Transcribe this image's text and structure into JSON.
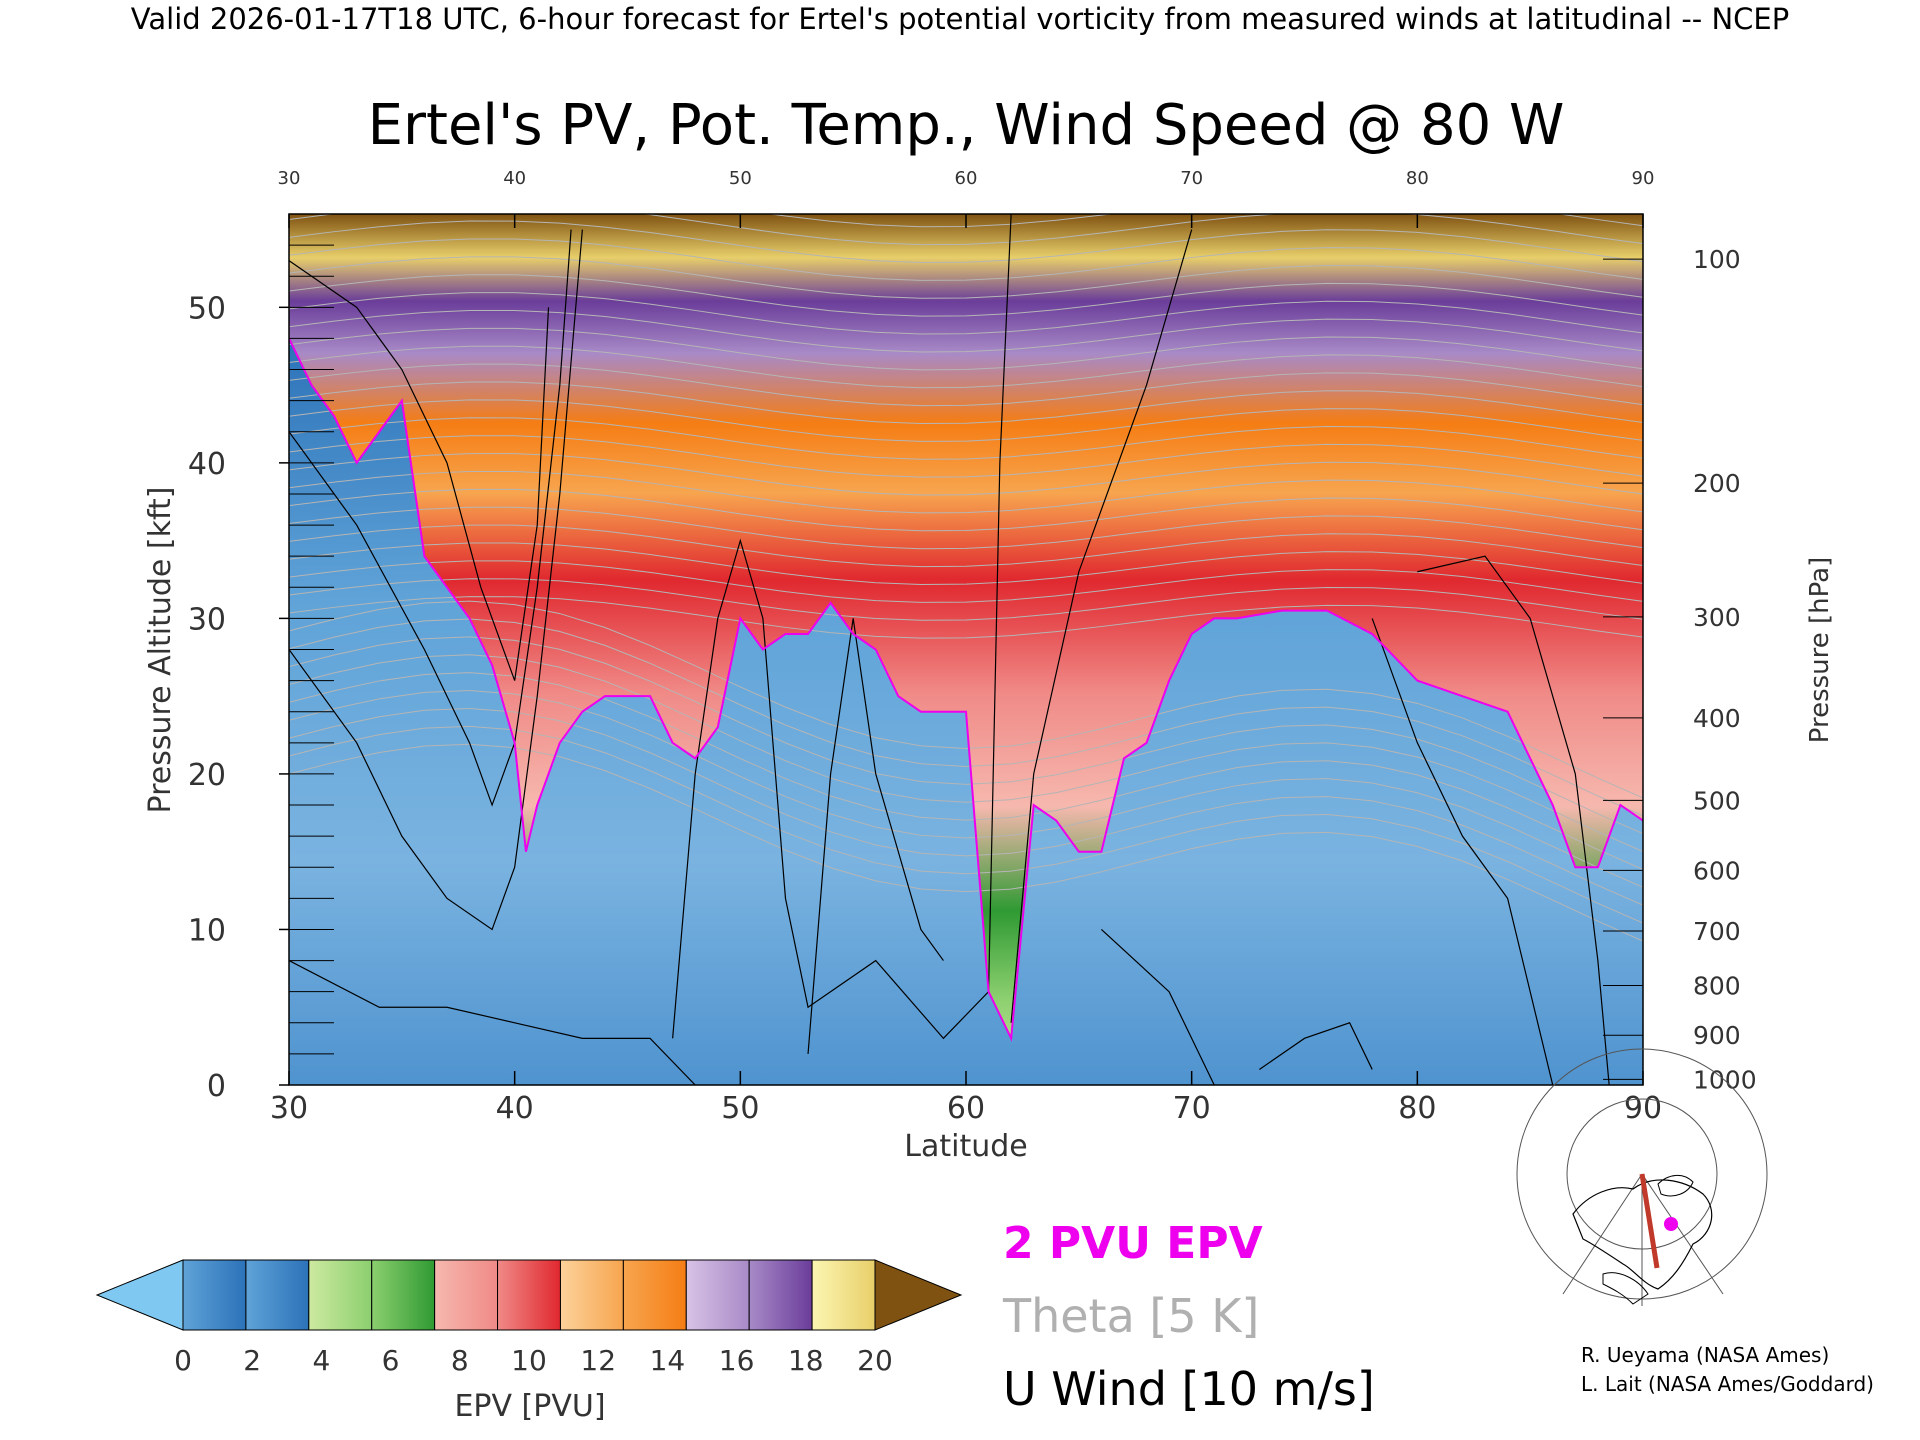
{
  "header": "Valid 2026-01-17T18 UTC, 6-hour forecast for Ertel's potential vorticity from measured winds at latitudinal -- NCEP",
  "chart_data": {
    "type": "heatmap",
    "title": "Ertel's PV, Pot. Temp., Wind Speed @ 80 W",
    "xlabel": "Latitude",
    "ylabel": "Pressure Altitude [kft]",
    "ylabel_right": "Pressure [hPa]",
    "xlim": [
      30,
      90
    ],
    "ylim": [
      0,
      56
    ],
    "x_ticks": [
      30,
      40,
      50,
      60,
      70,
      80,
      90
    ],
    "x_tick_labels": [
      "30",
      "40",
      "50",
      "60",
      "70",
      "80",
      "90"
    ],
    "y_ticks": [
      0,
      10,
      20,
      30,
      40,
      50
    ],
    "y_tick_labels": [
      "0",
      "10",
      "20",
      "30",
      "40",
      "50"
    ],
    "pressure_ticks": [
      {
        "label": "100",
        "kft": 53.1
      },
      {
        "label": "200",
        "kft": 38.7
      },
      {
        "label": "300",
        "kft": 30.1
      },
      {
        "label": "400",
        "kft": 23.6
      },
      {
        "label": "500",
        "kft": 18.3
      },
      {
        "label": "600",
        "kft": 13.8
      },
      {
        "label": "700",
        "kft": 9.9
      },
      {
        "label": "800",
        "kft": 6.4
      },
      {
        "label": "900",
        "kft": 3.2
      },
      {
        "label": "1000",
        "kft": 0.36
      }
    ],
    "pv_2pvu_boundary": {
      "lat": [
        30,
        31,
        32,
        33,
        34,
        35,
        36,
        37,
        38,
        39,
        40,
        40.5,
        41,
        42,
        43,
        44,
        46,
        47,
        48,
        49,
        50,
        51,
        52,
        53,
        54,
        55,
        56,
        57,
        58,
        59,
        60,
        61,
        62,
        63,
        64,
        65,
        66,
        67,
        68,
        69,
        70,
        71,
        72,
        74,
        76,
        78,
        80,
        82,
        84,
        86,
        87,
        88,
        89,
        90
      ],
      "kft": [
        48,
        45,
        43,
        40,
        42,
        44,
        34,
        32,
        30,
        27,
        22,
        15,
        18,
        22,
        24,
        25,
        25,
        22,
        21,
        23,
        30,
        28,
        29,
        29,
        31,
        29,
        28,
        25,
        24,
        24,
        24,
        6,
        3,
        18,
        17,
        15,
        15,
        21,
        22,
        26,
        29,
        30,
        30,
        30.5,
        30.5,
        29,
        26,
        25,
        24,
        18,
        14,
        14,
        18,
        17
      ]
    },
    "epv_colorbar": {
      "label": "EPV [PVU]",
      "ticks": [
        "0",
        "2",
        "4",
        "6",
        "8",
        "10",
        "12",
        "14",
        "16",
        "18",
        "20"
      ],
      "bands": [
        [
          "#5fa3d8",
          "#2c72b8"
        ],
        [
          "#5fa3d8",
          "#2c72b8"
        ],
        [
          "#cdeaa0",
          "#8ccf6f"
        ],
        [
          "#8ccf6f",
          "#2f9a33"
        ],
        [
          "#f6b8ae",
          "#f08a87"
        ],
        [
          "#f08a87",
          "#e0282f"
        ],
        [
          "#fcd29a",
          "#f7a54f"
        ],
        [
          "#f7a54f",
          "#f57d14"
        ],
        [
          "#d8c3e6",
          "#a88ac7"
        ],
        [
          "#a88ac7",
          "#6a3d9a"
        ],
        [
          "#fcf6b2",
          "#e8cf6a"
        ]
      ],
      "under_color": "#7ec8f2",
      "over_color": "#7f5212"
    },
    "legend_entries": [
      {
        "label": "2 PVU EPV",
        "color": "#ee00ee"
      },
      {
        "label": "Theta [5 K]",
        "color": "#b0b0b0"
      },
      {
        "label": "U Wind [10 m/s]",
        "color": "#000000"
      }
    ]
  },
  "credits": [
    "R. Ueyama (NASA Ames)",
    "L. Lait (NASA Ames/Goddard)"
  ]
}
